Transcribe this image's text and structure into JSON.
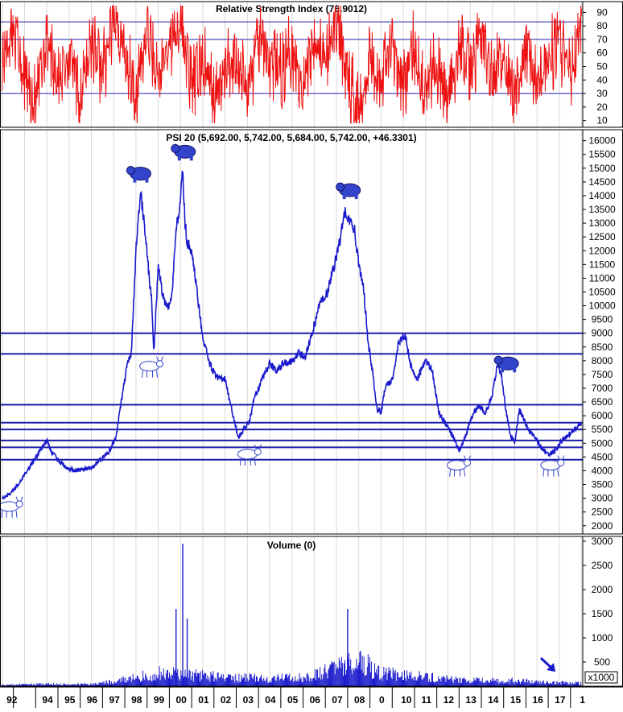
{
  "colors": {
    "rsi_line": "#ee1111",
    "price_line": "#1a1acc",
    "hline": "#1c1ca8",
    "volume_bar": "#1a1acc",
    "grid": "#d9d9d9",
    "frame": "#000000",
    "bull_bear_icon": "#3344cc"
  },
  "chart_data": [
    {
      "type": "line",
      "title": "Relative Strength Index (76.9012)",
      "ylim": [
        5,
        98
      ],
      "yticks": [
        10,
        20,
        30,
        40,
        50,
        60,
        70,
        80,
        90
      ],
      "hlines": [
        30,
        70,
        83
      ],
      "series": [
        {
          "x": [
            1992.0,
            1992.5,
            1993.0,
            1993.5,
            1994.0,
            1994.5,
            1995.0,
            1995.5,
            1996.0,
            1996.5,
            1997.0,
            1997.5,
            1998.0,
            1998.5,
            1999.0,
            1999.5,
            2000.0,
            2000.5,
            2001.0,
            2001.5,
            2002.0,
            2002.5,
            2003.0,
            2003.5,
            2004.0,
            2004.5,
            2005.0,
            2005.5,
            2006.0,
            2006.5,
            2007.0,
            2007.5,
            2008.0,
            2008.5,
            2009.0,
            2009.5,
            2010.0,
            2010.5,
            2011.0,
            2011.5,
            2012.0,
            2012.5,
            2013.0,
            2013.5,
            2014.0,
            2014.5,
            2015.0,
            2015.5,
            2016.0,
            2016.5,
            2017.0,
            2017.5,
            2018.0
          ],
          "values": [
            55,
            80,
            45,
            20,
            75,
            40,
            60,
            25,
            70,
            45,
            85,
            60,
            30,
            75,
            40,
            65,
            85,
            35,
            55,
            25,
            45,
            60,
            30,
            70,
            55,
            45,
            65,
            35,
            75,
            50,
            88,
            40,
            20,
            60,
            45,
            70,
            35,
            65,
            30,
            55,
            25,
            70,
            45,
            75,
            35,
            60,
            25,
            65,
            40,
            55,
            70,
            40,
            76.9
          ]
        }
      ]
    },
    {
      "type": "line",
      "title": "PSI 20 (5,692.00, 5,742.00, 5,684.00, 5,742.00, +46.3301)",
      "ylim": [
        1700,
        16400
      ],
      "yticks": [
        2000,
        2500,
        3000,
        3500,
        4000,
        4500,
        5000,
        5500,
        6000,
        6500,
        7000,
        7500,
        8000,
        8500,
        9000,
        9500,
        10000,
        10500,
        11000,
        11500,
        12000,
        12500,
        13000,
        13500,
        14000,
        14500,
        15000,
        15500,
        16000
      ],
      "hlines": [
        9000,
        8250,
        6400,
        5750,
        5500,
        5100,
        4850,
        4400
      ],
      "series": [
        {
          "x": [
            1992.0,
            1992.4,
            1992.8,
            1993.2,
            1993.6,
            1994.0,
            1994.2,
            1994.5,
            1994.8,
            1995.2,
            1995.6,
            1996.0,
            1996.4,
            1996.8,
            1997.1,
            1997.4,
            1997.6,
            1997.8,
            1998.0,
            1998.2,
            1998.4,
            1998.6,
            1998.7,
            1998.8,
            1999.0,
            1999.2,
            1999.4,
            1999.6,
            1999.8,
            2000.0,
            2000.1,
            2000.2,
            2000.3,
            2000.5,
            2000.7,
            2001.0,
            2001.3,
            2001.6,
            2002.0,
            2002.3,
            2002.6,
            2002.9,
            2003.1,
            2003.3,
            2003.6,
            2004.0,
            2004.3,
            2004.6,
            2005.0,
            2005.3,
            2005.6,
            2006.0,
            2006.3,
            2006.6,
            2007.0,
            2007.2,
            2007.4,
            2007.6,
            2007.8,
            2008.0,
            2008.2,
            2008.4,
            2008.6,
            2008.8,
            2009.0,
            2009.2,
            2009.5,
            2009.8,
            2010.1,
            2010.3,
            2010.6,
            2011.0,
            2011.3,
            2011.6,
            2011.9,
            2012.2,
            2012.5,
            2012.8,
            2013.1,
            2013.4,
            2013.7,
            2014.0,
            2014.2,
            2014.4,
            2014.6,
            2014.8,
            2015.0,
            2015.2,
            2015.4,
            2015.6,
            2015.9,
            2016.2,
            2016.5,
            2016.8,
            2017.1,
            2017.4,
            2017.7,
            2018.0
          ],
          "values": [
            3000,
            3200,
            3600,
            4100,
            4600,
            5100,
            4700,
            4400,
            4150,
            4000,
            4050,
            4100,
            4400,
            4700,
            5200,
            6800,
            7800,
            8300,
            12000,
            14200,
            12800,
            11000,
            10300,
            8200,
            11500,
            10400,
            9900,
            10200,
            12800,
            13800,
            15000,
            13000,
            12300,
            12000,
            10800,
            8800,
            7900,
            7400,
            7300,
            6200,
            5200,
            5600,
            5800,
            6600,
            7200,
            7900,
            7600,
            7900,
            8000,
            8300,
            8100,
            9300,
            10200,
            10500,
            11800,
            12600,
            13500,
            13000,
            12800,
            11500,
            10800,
            8800,
            7700,
            6300,
            6100,
            7100,
            7300,
            8700,
            8900,
            7900,
            7300,
            8000,
            7600,
            6100,
            5700,
            5300,
            4700,
            5300,
            6000,
            6400,
            6100,
            6800,
            7800,
            7500,
            6200,
            5300,
            5000,
            6200,
            5900,
            5500,
            5200,
            4800,
            4600,
            4700,
            5100,
            5300,
            5500,
            5742
          ]
        }
      ],
      "annotations": [
        {
          "kind": "bull",
          "x": 1992.3,
          "y": 2700
        },
        {
          "kind": "bear",
          "x": 1998.2,
          "y": 14800
        },
        {
          "kind": "bull",
          "x": 1998.6,
          "y": 7800
        },
        {
          "kind": "bear",
          "x": 2000.2,
          "y": 15600
        },
        {
          "kind": "bull",
          "x": 2003.0,
          "y": 4600
        },
        {
          "kind": "bear",
          "x": 2007.6,
          "y": 14200
        },
        {
          "kind": "bull",
          "x": 2012.4,
          "y": 4200
        },
        {
          "kind": "bear",
          "x": 2014.7,
          "y": 7900
        },
        {
          "kind": "bull",
          "x": 2016.6,
          "y": 4200
        }
      ]
    },
    {
      "type": "bar",
      "title": "Volume (0)",
      "ylim": [
        0,
        3100
      ],
      "yticks": [
        500,
        1000,
        1500,
        2000,
        2500,
        3000
      ],
      "unit_label": "x1000",
      "x": [
        1992,
        1993,
        1994,
        1995,
        1996,
        1997,
        1998,
        1999,
        1999.8,
        2000.1,
        2000.3,
        2001,
        2002,
        2003,
        2004,
        2005,
        2006,
        2007,
        2007.5,
        2008,
        2009,
        2010,
        2011,
        2012,
        2013,
        2014,
        2015,
        2016,
        2017,
        2018
      ],
      "values": [
        40,
        50,
        60,
        50,
        60,
        120,
        250,
        350,
        1600,
        2950,
        1400,
        300,
        250,
        220,
        220,
        220,
        300,
        500,
        1600,
        700,
        350,
        300,
        250,
        200,
        150,
        150,
        150,
        120,
        100,
        80
      ]
    }
  ],
  "x_axis": {
    "year_labels": [
      "92",
      "94",
      "95",
      "96",
      "97",
      "98",
      "99",
      "00",
      "01",
      "02",
      "03",
      "04",
      "05",
      "06",
      "07",
      "08",
      "0",
      "10",
      "11",
      "12",
      "13",
      "14",
      "15",
      "16",
      "17",
      "1"
    ]
  }
}
